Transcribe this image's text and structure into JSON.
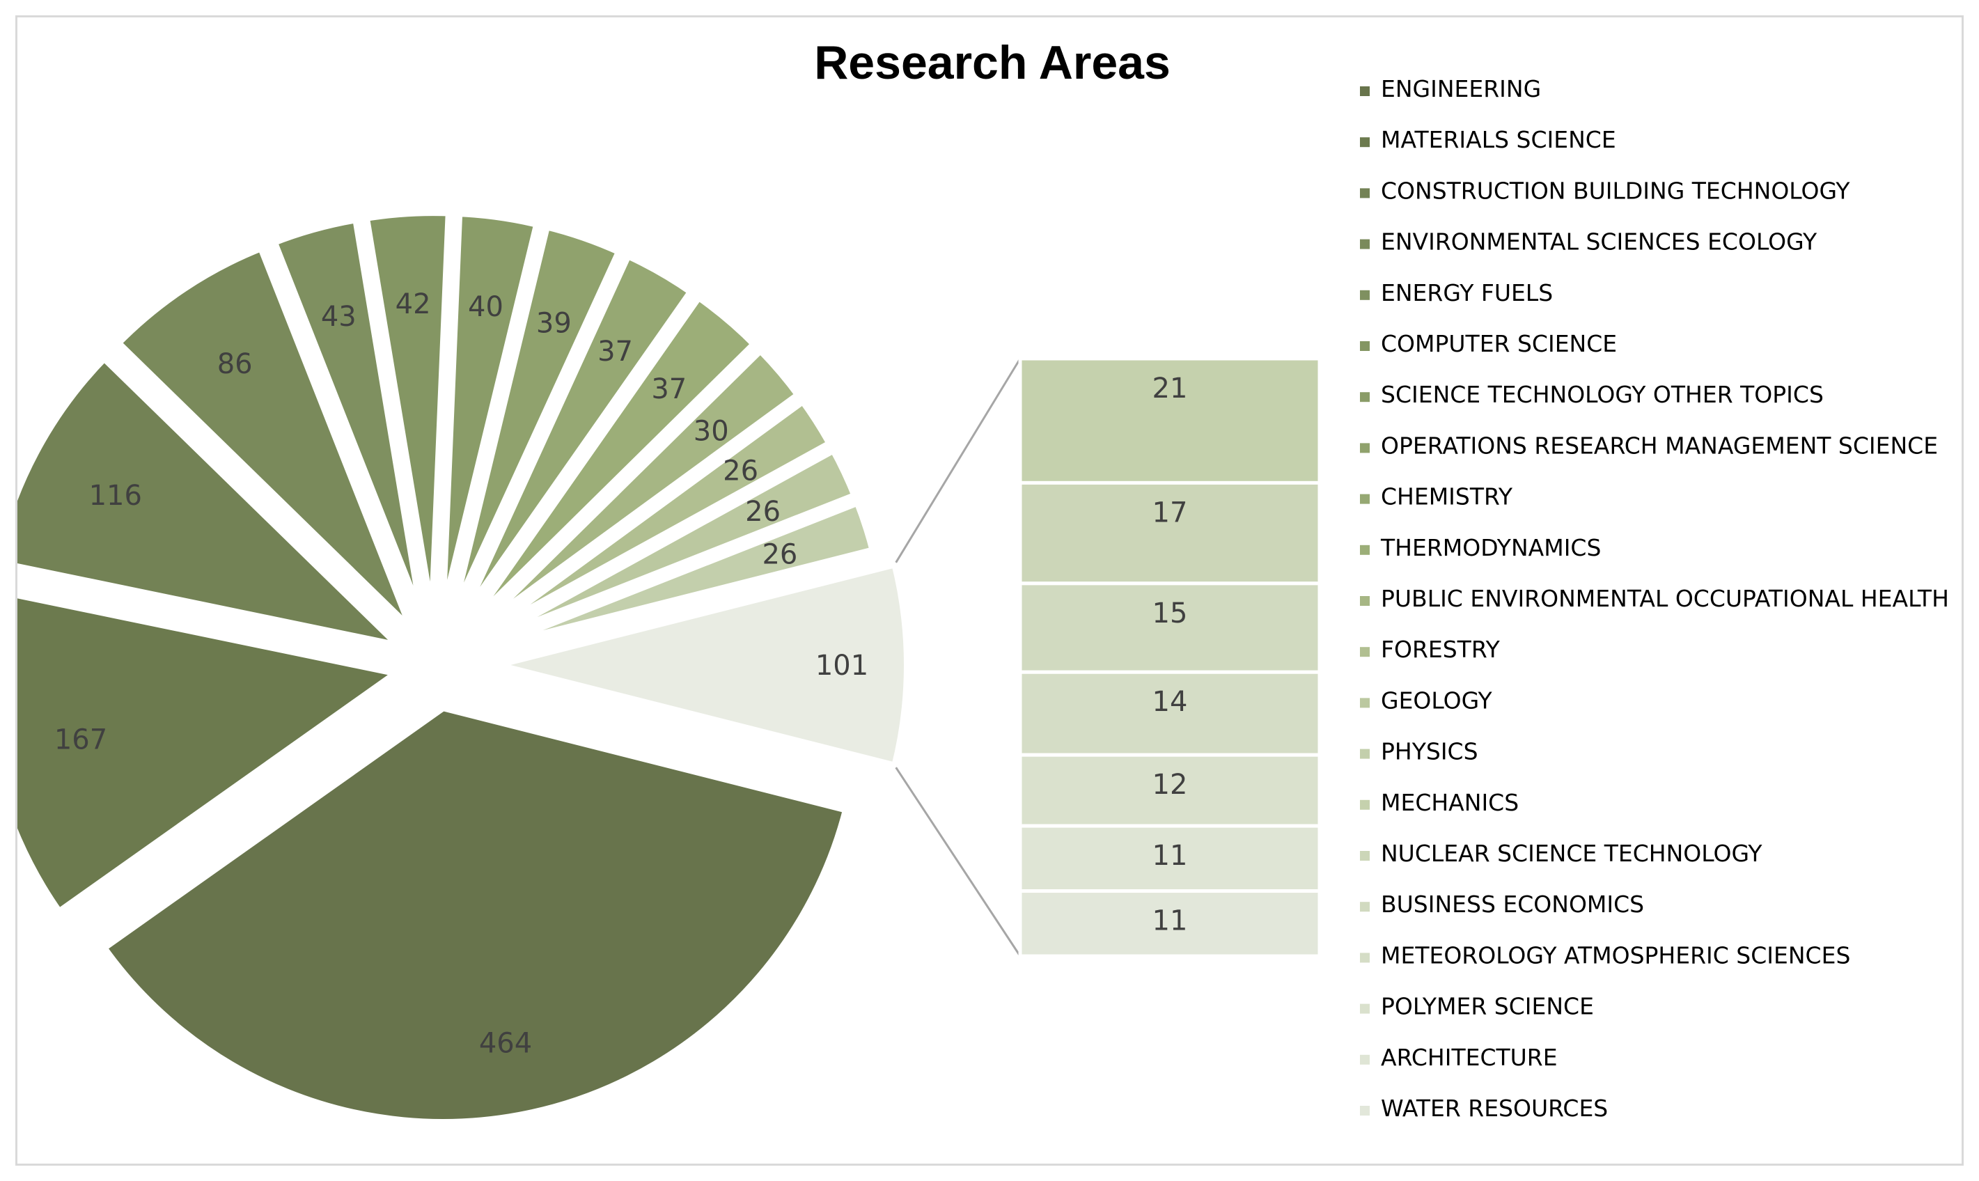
{
  "chart_data": {
    "type": "pie",
    "subtype": "bar-of-pie",
    "title": "Research Areas",
    "legend_position": "right",
    "categories": [
      "ENGINEERING",
      "MATERIALS SCIENCE",
      "CONSTRUCTION BUILDING TECHNOLOGY",
      "ENVIRONMENTAL SCIENCES ECOLOGY",
      "ENERGY FUELS",
      "COMPUTER SCIENCE",
      "SCIENCE TECHNOLOGY OTHER TOPICS",
      "OPERATIONS RESEARCH MANAGEMENT SCIENCE",
      "CHEMISTRY",
      "THERMODYNAMICS",
      "PUBLIC ENVIRONMENTAL OCCUPATIONAL HEALTH",
      "FORESTRY",
      "GEOLOGY",
      "PHYSICS",
      "MECHANICS",
      "NUCLEAR SCIENCE TECHNOLOGY",
      "BUSINESS ECONOMICS",
      "METEOROLOGY ATMOSPHERIC SCIENCES",
      "POLYMER SCIENCE",
      "ARCHITECTURE",
      "WATER RESOURCES"
    ],
    "values": [
      464,
      167,
      116,
      86,
      43,
      42,
      40,
      39,
      37,
      37,
      30,
      26,
      26,
      26,
      21,
      17,
      15,
      14,
      12,
      11,
      11
    ],
    "pie_values": [
      464,
      167,
      116,
      86,
      43,
      42,
      40,
      39,
      37,
      37,
      30,
      26,
      26,
      26
    ],
    "other_value": 101,
    "bar_values": [
      21,
      17,
      15,
      14,
      12,
      11,
      11
    ],
    "colors": [
      "#68744c",
      "#6c7a4e",
      "#738255",
      "#7a8a5b",
      "#7f9060",
      "#849663",
      "#8a9c68",
      "#90a26d",
      "#96a873",
      "#9cae78",
      "#a6b684",
      "#b1bf91",
      "#bbc8a0",
      "#c3cfac",
      "#c5d1ad",
      "#ccd6b8",
      "#d1dac0",
      "#d5ddc6",
      "#dae1cd",
      "#dfe5d5",
      "#e2e7da"
    ],
    "other_color": "#e9ece3"
  }
}
